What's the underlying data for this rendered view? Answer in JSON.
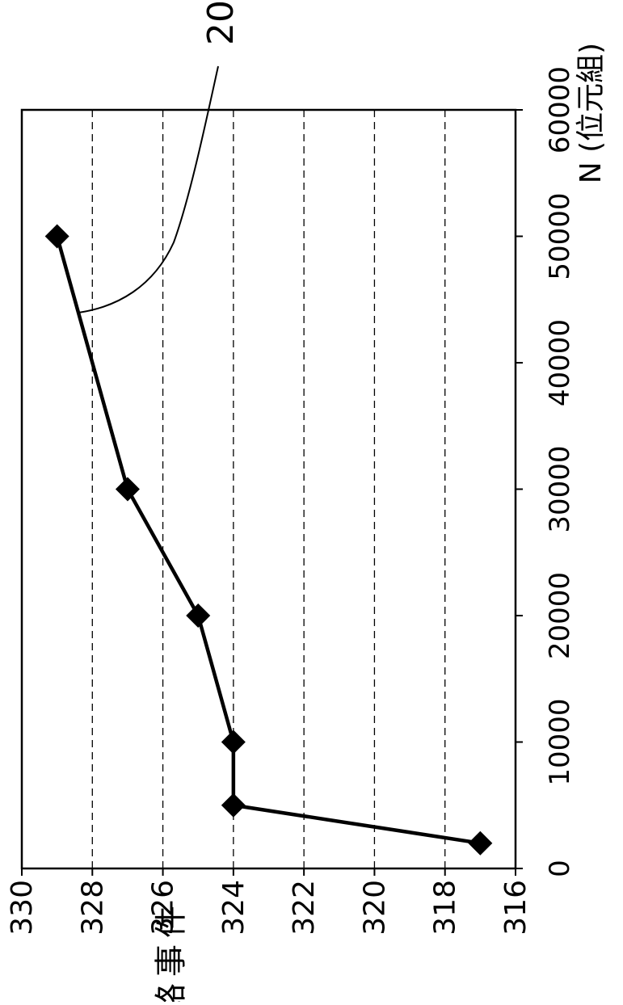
{
  "chart_data": {
    "type": "line",
    "title": "",
    "xlabel": "N (位元組)",
    "ylabel": "網路事件",
    "callout_label": "20",
    "xlim": [
      0,
      60000
    ],
    "ylim": [
      316,
      330
    ],
    "x_ticks": [
      "0",
      "10000",
      "20000",
      "30000",
      "40000",
      "50000",
      "60000"
    ],
    "y_ticks": [
      "316",
      "318",
      "320",
      "322",
      "324",
      "326",
      "328",
      "330"
    ],
    "grid": "dashed horizontal lines",
    "series": [
      {
        "marker": "diamond",
        "x": [
          2000,
          5000,
          10000,
          20000,
          30000,
          50000
        ],
        "y": [
          317,
          324,
          324,
          325,
          327,
          329
        ]
      }
    ]
  },
  "colors": {
    "line": "#000000",
    "background": "#ffffff"
  }
}
